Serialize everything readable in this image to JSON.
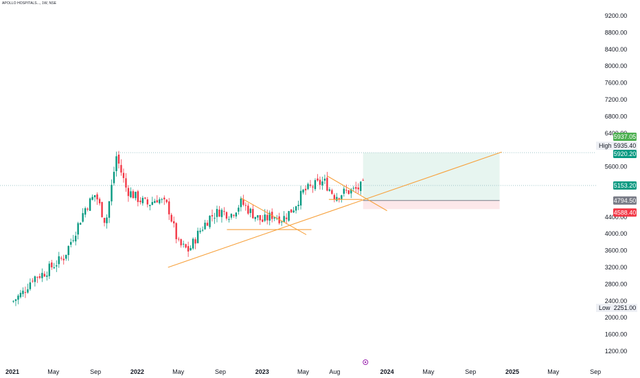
{
  "header": {
    "symbol_title": "APOLLO HOSPITALS..., 1W, NSE"
  },
  "colors": {
    "up": "#089981",
    "down": "#f23645",
    "trendline": "#f7a13c",
    "grid_dotted": "#9fc5c9",
    "axis_text": "#131722",
    "target_zone": "#e7f5f0",
    "stop_zone": "#fde8ea",
    "tag_green_dark": "#089981",
    "tag_green_light": "#4caf50",
    "tag_gray": "#787b86",
    "tag_red": "#f23645",
    "tag_marker": "#9c27b0"
  },
  "chart_data": {
    "type": "candlestick",
    "x_ticks": [
      "2021",
      "May",
      "Sep",
      "2022",
      "May",
      "Sep",
      "2023",
      "May",
      "Aug",
      "2024",
      "May",
      "Sep",
      "2025",
      "May",
      "Sep"
    ],
    "y_ticks": [
      "9200.00",
      "8800.00",
      "8400.00",
      "8000.00",
      "7600.00",
      "7200.00",
      "6800.00",
      "6400.00",
      "5600.00",
      "4400.00",
      "4000.00",
      "3600.00",
      "3200.00",
      "2800.00",
      "2400.00",
      "2000.00",
      "1600.00",
      "1200.00"
    ],
    "ylim": [
      1000,
      9550
    ],
    "tags": {
      "green_upper": "5937.05",
      "high_label": "High",
      "high_value": "5935.40",
      "green_lower": "5920.20",
      "current": "5153.20",
      "entry": "4794.50",
      "stop": "4588.40",
      "low_label": "Low",
      "low_value": "2251.00"
    },
    "levels": {
      "high": 5935.4,
      "current": 5153.2,
      "entry": 4794.5,
      "stop": 4588.4,
      "target": 5935.4
    },
    "weekly_close_points": [
      {
        "d": "2021-01-01",
        "v": 2380
      },
      {
        "d": "2021-02-01",
        "v": 2600
      },
      {
        "d": "2021-03-01",
        "v": 2950
      },
      {
        "d": "2021-04-01",
        "v": 3050
      },
      {
        "d": "2021-05-01",
        "v": 3250
      },
      {
        "d": "2021-06-01",
        "v": 3450
      },
      {
        "d": "2021-07-01",
        "v": 4000
      },
      {
        "d": "2021-08-01",
        "v": 4600
      },
      {
        "d": "2021-09-01",
        "v": 4950
      },
      {
        "d": "2021-10-01",
        "v": 4250
      },
      {
        "d": "2021-11-01",
        "v": 5850
      },
      {
        "d": "2021-12-01",
        "v": 5050
      },
      {
        "d": "2022-01-01",
        "v": 4850
      },
      {
        "d": "2022-02-01",
        "v": 4700
      },
      {
        "d": "2022-03-01",
        "v": 4850
      },
      {
        "d": "2022-04-01",
        "v": 4650
      },
      {
        "d": "2022-05-01",
        "v": 3750
      },
      {
        "d": "2022-06-01",
        "v": 3600
      },
      {
        "d": "2022-07-01",
        "v": 4050
      },
      {
        "d": "2022-08-01",
        "v": 4400
      },
      {
        "d": "2022-09-01",
        "v": 4550
      },
      {
        "d": "2022-10-01",
        "v": 4450
      },
      {
        "d": "2022-11-01",
        "v": 4750
      },
      {
        "d": "2022-12-01",
        "v": 4500
      },
      {
        "d": "2023-01-01",
        "v": 4300
      },
      {
        "d": "2023-02-01",
        "v": 4450
      },
      {
        "d": "2023-03-01",
        "v": 4350
      },
      {
        "d": "2023-04-01",
        "v": 4600
      },
      {
        "d": "2023-05-01",
        "v": 5000
      },
      {
        "d": "2023-06-01",
        "v": 5150
      },
      {
        "d": "2023-07-01",
        "v": 5250
      },
      {
        "d": "2023-08-01",
        "v": 4900
      },
      {
        "d": "2023-09-01",
        "v": 5000
      },
      {
        "d": "2023-10-01",
        "v": 5050
      },
      {
        "d": "2023-10-23",
        "v": 5153
      }
    ]
  }
}
